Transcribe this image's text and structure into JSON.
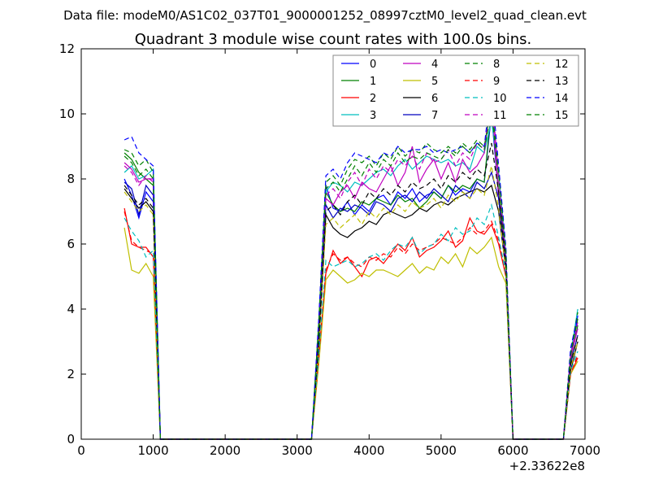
{
  "suptitle": "Data file: modeM0/AS1C02_037T01_9000001252_08997cztM0_level2_quad_clean.evt",
  "chart_data": {
    "type": "line",
    "title": "Quadrant 3 module wise count rates with 100.0s bins.",
    "xlabel": "",
    "ylabel": "",
    "xlim": [
      0,
      7000
    ],
    "ylim": [
      0,
      12
    ],
    "x_offset_label": "+2.33622e8",
    "xticks": [
      0,
      1000,
      2000,
      3000,
      4000,
      5000,
      6000,
      7000
    ],
    "yticks": [
      0,
      2,
      4,
      6,
      8,
      10,
      12
    ],
    "grid": false,
    "legend_position": "top-right",
    "legend_columns": 4,
    "x": [
      600,
      700,
      800,
      900,
      1000,
      1100,
      1200,
      1300,
      1400,
      1500,
      1600,
      1700,
      1800,
      1900,
      2000,
      2100,
      2200,
      2300,
      2400,
      2500,
      2600,
      2700,
      2800,
      2900,
      3000,
      3100,
      3200,
      3300,
      3400,
      3500,
      3600,
      3700,
      3800,
      3900,
      4000,
      4100,
      4200,
      4300,
      4400,
      4500,
      4600,
      4700,
      4800,
      4900,
      5000,
      5100,
      5200,
      5300,
      5400,
      5500,
      5600,
      5700,
      5800,
      5900,
      6000,
      6100,
      6200,
      6300,
      6400,
      6500,
      6600,
      6700,
      6800,
      6900
    ],
    "series": [
      {
        "name": "0",
        "color": "#0000ff",
        "dash": "solid",
        "values": [
          8.0,
          7.5,
          6.8,
          7.6,
          7.3,
          0,
          0,
          0,
          0,
          0,
          0,
          0,
          0,
          0,
          0,
          0,
          0,
          0,
          0,
          0,
          0,
          0,
          0,
          0,
          0,
          0,
          0,
          3.0,
          7.8,
          7.1,
          7.0,
          7.3,
          6.9,
          7.2,
          7.0,
          7.4,
          7.5,
          7.2,
          7.6,
          7.4,
          7.7,
          7.3,
          7.5,
          7.6,
          7.4,
          7.8,
          7.5,
          7.7,
          7.6,
          8.0,
          7.9,
          10.0,
          7.5,
          5.5,
          0,
          0,
          0,
          0,
          0,
          0,
          0,
          0,
          2.5,
          3.8
        ]
      },
      {
        "name": "1",
        "color": "#008000",
        "dash": "solid",
        "values": [
          8.8,
          8.6,
          8.2,
          8.0,
          7.8,
          0,
          0,
          0,
          0,
          0,
          0,
          0,
          0,
          0,
          0,
          0,
          0,
          0,
          0,
          0,
          0,
          0,
          0,
          0,
          0,
          0,
          0,
          3.0,
          7.6,
          7.2,
          7.0,
          7.1,
          7.0,
          7.3,
          7.2,
          7.4,
          7.3,
          7.2,
          7.5,
          7.3,
          7.4,
          7.1,
          7.3,
          7.6,
          7.4,
          7.8,
          7.6,
          7.8,
          7.7,
          8.0,
          7.9,
          10.2,
          7.6,
          5.5,
          0,
          0,
          0,
          0,
          0,
          0,
          0,
          0,
          2.4,
          3.5
        ]
      },
      {
        "name": "2",
        "color": "#ff0000",
        "dash": "solid",
        "values": [
          7.1,
          6.0,
          5.9,
          5.9,
          5.6,
          0,
          0,
          0,
          0,
          0,
          0,
          0,
          0,
          0,
          0,
          0,
          0,
          0,
          0,
          0,
          0,
          0,
          0,
          0,
          0,
          0,
          0,
          2.5,
          5.1,
          5.8,
          5.4,
          5.6,
          5.3,
          5.0,
          5.5,
          5.6,
          5.4,
          5.7,
          6.0,
          5.8,
          6.2,
          5.6,
          5.8,
          5.9,
          6.1,
          6.4,
          5.9,
          6.1,
          6.8,
          6.4,
          6.3,
          6.6,
          6.0,
          5.0,
          0,
          0,
          0,
          0,
          0,
          0,
          0,
          0,
          2.0,
          2.5
        ]
      },
      {
        "name": "3",
        "color": "#00bfbf",
        "dash": "solid",
        "values": [
          8.2,
          8.4,
          8.0,
          8.1,
          8.3,
          0,
          0,
          0,
          0,
          0,
          0,
          0,
          0,
          0,
          0,
          0,
          0,
          0,
          0,
          0,
          0,
          0,
          0,
          0,
          0,
          0,
          0,
          3.5,
          7.6,
          7.9,
          7.8,
          7.6,
          7.9,
          7.8,
          8.0,
          8.2,
          8.3,
          8.1,
          8.4,
          8.6,
          8.3,
          8.5,
          8.7,
          8.6,
          8.5,
          8.6,
          8.4,
          8.5,
          8.3,
          9.0,
          8.8,
          9.8,
          8.2,
          5.7,
          0,
          0,
          0,
          0,
          0,
          0,
          0,
          0,
          2.6,
          4.0
        ]
      },
      {
        "name": "4",
        "color": "#bf00bf",
        "dash": "solid",
        "values": [
          8.5,
          8.3,
          7.9,
          8.0,
          8.0,
          0,
          0,
          0,
          0,
          0,
          0,
          0,
          0,
          0,
          0,
          0,
          0,
          0,
          0,
          0,
          0,
          0,
          0,
          0,
          0,
          0,
          0,
          3.3,
          7.4,
          7.2,
          7.6,
          7.8,
          7.4,
          7.9,
          7.7,
          7.6,
          8.0,
          8.4,
          7.8,
          8.2,
          9.0,
          7.9,
          8.3,
          8.6,
          8.0,
          8.5,
          7.9,
          8.6,
          8.2,
          8.4,
          8.8,
          10.5,
          7.4,
          5.5,
          0,
          0,
          0,
          0,
          0,
          0,
          0,
          0,
          2.5,
          3.4
        ]
      },
      {
        "name": "5",
        "color": "#bfbf00",
        "dash": "solid",
        "values": [
          6.5,
          5.2,
          5.1,
          5.4,
          5.0,
          0,
          0,
          0,
          0,
          0,
          0,
          0,
          0,
          0,
          0,
          0,
          0,
          0,
          0,
          0,
          0,
          0,
          0,
          0,
          0,
          0,
          0,
          2.3,
          4.9,
          5.2,
          5.0,
          4.8,
          4.9,
          5.1,
          5.0,
          5.2,
          5.2,
          5.1,
          5.0,
          5.2,
          5.4,
          5.1,
          5.3,
          5.2,
          5.6,
          5.4,
          5.7,
          5.3,
          5.9,
          5.7,
          5.9,
          6.2,
          5.3,
          4.8,
          0,
          0,
          0,
          0,
          0,
          0,
          0,
          0,
          2.0,
          2.4
        ]
      },
      {
        "name": "6",
        "color": "#000000",
        "dash": "solid",
        "values": [
          7.7,
          7.4,
          7.1,
          7.3,
          7.0,
          0,
          0,
          0,
          0,
          0,
          0,
          0,
          0,
          0,
          0,
          0,
          0,
          0,
          0,
          0,
          0,
          0,
          0,
          0,
          0,
          0,
          0,
          2.8,
          6.9,
          6.5,
          6.3,
          6.2,
          6.4,
          6.5,
          6.7,
          6.6,
          6.9,
          7.0,
          6.9,
          6.8,
          6.9,
          7.1,
          7.0,
          7.2,
          7.3,
          7.2,
          7.4,
          7.5,
          7.6,
          7.7,
          7.6,
          7.8,
          7.0,
          5.2,
          0,
          0,
          0,
          0,
          0,
          0,
          0,
          0,
          2.1,
          3.0
        ]
      },
      {
        "name": "7",
        "color": "#0000bf",
        "dash": "solid",
        "values": [
          7.9,
          7.7,
          6.9,
          7.8,
          7.5,
          0,
          0,
          0,
          0,
          0,
          0,
          0,
          0,
          0,
          0,
          0,
          0,
          0,
          0,
          0,
          0,
          0,
          0,
          0,
          0,
          0,
          0,
          3.1,
          7.2,
          6.8,
          7.1,
          7.0,
          7.2,
          7.1,
          6.9,
          7.3,
          7.2,
          7.0,
          7.4,
          7.5,
          7.3,
          7.6,
          7.4,
          7.7,
          7.5,
          7.3,
          7.8,
          7.6,
          7.4,
          7.9,
          7.7,
          8.2,
          7.4,
          5.3,
          0,
          0,
          0,
          0,
          0,
          0,
          0,
          0,
          2.3,
          3.2
        ]
      },
      {
        "name": "8",
        "color": "#008000",
        "dash": "dash",
        "values": [
          8.9,
          8.8,
          8.4,
          8.6,
          8.2,
          0,
          0,
          0,
          0,
          0,
          0,
          0,
          0,
          0,
          0,
          0,
          0,
          0,
          0,
          0,
          0,
          0,
          0,
          0,
          0,
          0,
          0,
          3.6,
          7.9,
          8.1,
          7.8,
          8.3,
          8.6,
          8.5,
          8.7,
          8.4,
          8.8,
          8.6,
          9.0,
          8.7,
          8.9,
          8.8,
          9.1,
          8.9,
          8.8,
          9.0,
          8.8,
          9.1,
          8.9,
          9.2,
          9.0,
          10.3,
          8.3,
          5.8,
          0,
          0,
          0,
          0,
          0,
          0,
          0,
          0,
          2.7,
          3.9
        ]
      },
      {
        "name": "9",
        "color": "#ff0000",
        "dash": "dash",
        "values": [
          7.0,
          6.1,
          5.9,
          5.8,
          5.7,
          0,
          0,
          0,
          0,
          0,
          0,
          0,
          0,
          0,
          0,
          0,
          0,
          0,
          0,
          0,
          0,
          0,
          0,
          0,
          0,
          0,
          0,
          2.5,
          5.2,
          5.7,
          5.5,
          5.6,
          5.4,
          5.3,
          5.6,
          5.5,
          5.7,
          5.6,
          5.9,
          5.7,
          6.0,
          5.8,
          5.9,
          6.0,
          6.2,
          6.1,
          6.0,
          6.2,
          6.5,
          6.3,
          6.4,
          6.7,
          6.1,
          5.1,
          0,
          0,
          0,
          0,
          0,
          0,
          0,
          0,
          2.0,
          2.6
        ]
      },
      {
        "name": "10",
        "color": "#00bfbf",
        "dash": "dash",
        "values": [
          6.8,
          6.4,
          6.1,
          5.6,
          5.8,
          0,
          0,
          0,
          0,
          0,
          0,
          0,
          0,
          0,
          0,
          0,
          0,
          0,
          0,
          0,
          0,
          0,
          0,
          0,
          0,
          0,
          0,
          2.6,
          5.5,
          5.3,
          5.4,
          5.5,
          5.3,
          5.4,
          5.6,
          5.7,
          5.5,
          5.8,
          6.0,
          5.9,
          6.2,
          5.7,
          5.9,
          6.0,
          6.3,
          6.1,
          6.5,
          6.3,
          6.4,
          6.8,
          6.6,
          7.2,
          6.2,
          5.1,
          0,
          0,
          0,
          0,
          0,
          0,
          0,
          0,
          2.1,
          2.7
        ]
      },
      {
        "name": "11",
        "color": "#bf00bf",
        "dash": "dash",
        "values": [
          8.4,
          8.2,
          7.8,
          8.1,
          7.9,
          0,
          0,
          0,
          0,
          0,
          0,
          0,
          0,
          0,
          0,
          0,
          0,
          0,
          0,
          0,
          0,
          0,
          0,
          0,
          0,
          0,
          0,
          3.3,
          7.5,
          7.7,
          7.4,
          7.9,
          8.2,
          7.8,
          8.3,
          8.0,
          8.4,
          8.2,
          8.6,
          8.4,
          8.7,
          8.3,
          8.8,
          8.5,
          8.6,
          8.9,
          8.4,
          8.8,
          8.6,
          9.1,
          8.9,
          10.8,
          8.0,
          5.6,
          0,
          0,
          0,
          0,
          0,
          0,
          0,
          0,
          2.6,
          3.6
        ]
      },
      {
        "name": "12",
        "color": "#bfbf00",
        "dash": "dash",
        "values": [
          7.6,
          7.3,
          7.0,
          7.2,
          6.9,
          0,
          0,
          0,
          0,
          0,
          0,
          0,
          0,
          0,
          0,
          0,
          0,
          0,
          0,
          0,
          0,
          0,
          0,
          0,
          0,
          0,
          0,
          2.9,
          6.6,
          6.8,
          6.5,
          6.7,
          6.9,
          6.6,
          7.0,
          6.8,
          7.1,
          6.9,
          7.2,
          7.0,
          7.3,
          7.1,
          7.2,
          7.4,
          7.1,
          7.5,
          7.3,
          7.6,
          7.4,
          7.7,
          7.5,
          8.4,
          7.1,
          5.2,
          0,
          0,
          0,
          0,
          0,
          0,
          0,
          0,
          2.2,
          3.0
        ]
      },
      {
        "name": "13",
        "color": "#000000",
        "dash": "dash",
        "values": [
          7.8,
          7.5,
          7.2,
          7.4,
          7.1,
          0,
          0,
          0,
          0,
          0,
          0,
          0,
          0,
          0,
          0,
          0,
          0,
          0,
          0,
          0,
          0,
          0,
          0,
          0,
          0,
          0,
          0,
          3.0,
          7.0,
          7.2,
          6.9,
          7.3,
          7.5,
          7.2,
          7.6,
          7.4,
          7.7,
          7.5,
          7.8,
          7.6,
          7.9,
          7.7,
          7.8,
          8.0,
          7.7,
          8.1,
          7.9,
          8.2,
          8.0,
          8.3,
          8.1,
          9.1,
          7.6,
          5.4,
          0,
          0,
          0,
          0,
          0,
          0,
          0,
          0,
          2.3,
          3.2
        ]
      },
      {
        "name": "14",
        "color": "#0000ff",
        "dash": "dash",
        "values": [
          9.2,
          9.3,
          8.8,
          8.6,
          8.4,
          0,
          0,
          0,
          0,
          0,
          0,
          0,
          0,
          0,
          0,
          0,
          0,
          0,
          0,
          0,
          0,
          0,
          0,
          0,
          0,
          0,
          0,
          3.7,
          8.1,
          8.3,
          8.0,
          8.5,
          8.8,
          8.7,
          8.6,
          8.5,
          8.8,
          8.7,
          9.0,
          8.8,
          8.9,
          8.9,
          9.0,
          8.8,
          8.9,
          8.8,
          8.9,
          9.0,
          8.8,
          9.1,
          9.0,
          10.9,
          8.4,
          5.9,
          0,
          0,
          0,
          0,
          0,
          0,
          0,
          0,
          2.8,
          3.8
        ]
      },
      {
        "name": "15",
        "color": "#008000",
        "dash": "dash",
        "values": [
          8.7,
          8.5,
          8.1,
          8.3,
          8.0,
          0,
          0,
          0,
          0,
          0,
          0,
          0,
          0,
          0,
          0,
          0,
          0,
          0,
          0,
          0,
          0,
          0,
          0,
          0,
          0,
          0,
          0,
          3.4,
          7.7,
          7.9,
          7.6,
          8.0,
          8.4,
          8.1,
          8.5,
          8.2,
          8.6,
          8.4,
          8.8,
          8.5,
          8.7,
          8.6,
          8.8,
          8.7,
          8.6,
          8.9,
          8.7,
          9.0,
          8.8,
          9.1,
          8.9,
          10.1,
          8.1,
          5.7,
          0,
          0,
          0,
          0,
          0,
          0,
          0,
          0,
          2.6,
          3.7
        ]
      }
    ]
  }
}
